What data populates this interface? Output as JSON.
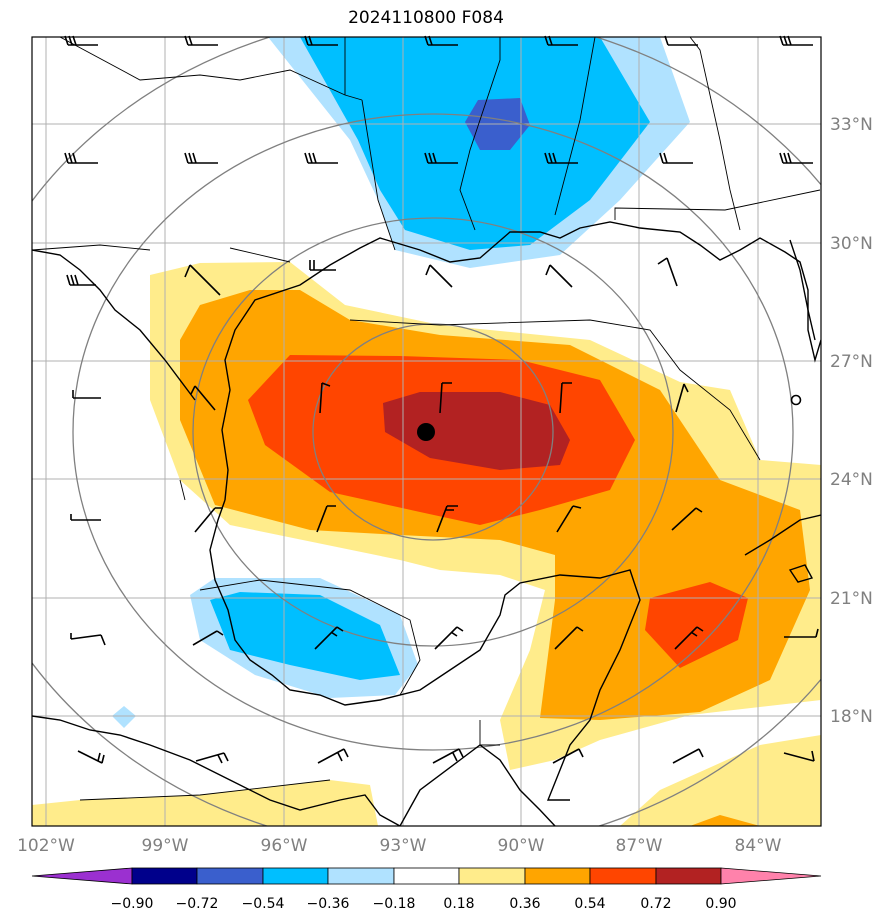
{
  "title": "2024110800 F084",
  "map": {
    "lon_labels": [
      "102°W",
      "99°W",
      "96°W",
      "93°W",
      "90°W",
      "87°W",
      "84°W"
    ],
    "lat_labels": [
      "33°N",
      "30°N",
      "27°N",
      "24°N",
      "21°N",
      "18°N"
    ],
    "storm_center": {
      "lon": -92.5,
      "lat": 25.2
    }
  },
  "colorbar": {
    "labels": [
      "−0.90",
      "−0.72",
      "−0.54",
      "−0.36",
      "−0.18",
      "0.18",
      "0.36",
      "0.54",
      "0.72",
      "0.90"
    ],
    "colors": [
      "#9b30d0",
      "#00008b",
      "#3a5fcd",
      "#00bfff",
      "#b0e2ff",
      "#ffffff",
      "#ffec8b",
      "#ffa500",
      "#ff4500",
      "#b22222",
      "#ff82ab"
    ]
  },
  "colors": {
    "pos1": "#ffec8b",
    "pos2": "#ffa500",
    "pos3": "#ff4500",
    "pos4": "#b22222",
    "neg1": "#b0e2ff",
    "neg2": "#00bfff",
    "neg3": "#3a5fcd",
    "grid": "#b0b0b0",
    "rings": "#808080",
    "coast": "#000000"
  }
}
